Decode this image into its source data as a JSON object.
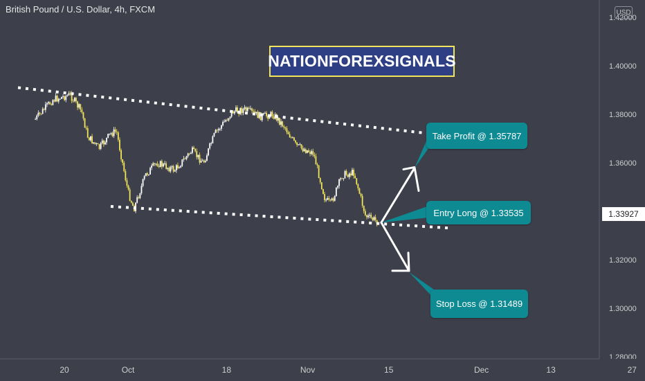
{
  "symbol_title": "British Pound / U.S. Dollar, 4h, FXCM",
  "watermark": "NATIONFOREXSIGNALS",
  "currency_badge": "USD",
  "last_price": "1.33927",
  "callouts": {
    "take_profit": "Take Profit @ 1.35787",
    "entry": "Entry Long @ 1.33535",
    "stop_loss": "Stop Loss @ 1.31489"
  },
  "colors": {
    "background": "#3d3f4b",
    "candle": "#f2e45a",
    "callout": "#0e8a93",
    "trendline": "#ffffff",
    "brand_box": "#2f3f84",
    "brand_border": "#f2e45a"
  },
  "chart_data": {
    "type": "candlestick",
    "y_tick_labels": [
      "1.28000",
      "1.30000",
      "1.32000",
      "1.34000",
      "1.36000",
      "1.38000",
      "1.40000",
      "1.42000"
    ],
    "x_tick_labels": [
      "20",
      "Oct",
      "18",
      "Nov",
      "15",
      "Dec",
      "13",
      "27"
    ],
    "ylim": [
      1.278,
      1.422
    ],
    "grid": false,
    "price_path": [
      {
        "x": "Sep 15",
        "y": 1.378
      },
      {
        "x": "Sep 18",
        "y": 1.386
      },
      {
        "x": "Sep 21",
        "y": 1.388
      },
      {
        "x": "Sep 23",
        "y": 1.381
      },
      {
        "x": "Sep 24",
        "y": 1.371
      },
      {
        "x": "Sep 26",
        "y": 1.366
      },
      {
        "x": "Sep 28",
        "y": 1.372
      },
      {
        "x": "Sep 29",
        "y": 1.373
      },
      {
        "x": "Oct 1",
        "y": 1.348
      },
      {
        "x": "Oct 2",
        "y": 1.341
      },
      {
        "x": "Oct 4",
        "y": 1.355
      },
      {
        "x": "Oct 6",
        "y": 1.36
      },
      {
        "x": "Oct 9",
        "y": 1.357
      },
      {
        "x": "Oct 12",
        "y": 1.365
      },
      {
        "x": "Oct 14",
        "y": 1.36
      },
      {
        "x": "Oct 16",
        "y": 1.372
      },
      {
        "x": "Oct 19",
        "y": 1.381
      },
      {
        "x": "Oct 21",
        "y": 1.382
      },
      {
        "x": "Oct 24",
        "y": 1.379
      },
      {
        "x": "Oct 26",
        "y": 1.38
      },
      {
        "x": "Oct 28",
        "y": 1.375
      },
      {
        "x": "Oct 30",
        "y": 1.367
      },
      {
        "x": "Nov 2",
        "y": 1.364
      },
      {
        "x": "Nov 4",
        "y": 1.345
      },
      {
        "x": "Nov 5",
        "y": 1.343
      },
      {
        "x": "Nov 7",
        "y": 1.355
      },
      {
        "x": "Nov 9",
        "y": 1.356
      },
      {
        "x": "Nov 11",
        "y": 1.338
      },
      {
        "x": "Nov 13",
        "y": 1.336
      }
    ],
    "trendlines": [
      {
        "name": "resistance",
        "from": {
          "x": "Sep 12",
          "y": 1.391
        },
        "to": {
          "x": "Nov 26",
          "y": 1.371
        }
      },
      {
        "name": "support",
        "from": {
          "x": "Sep 28",
          "y": 1.342
        },
        "to": {
          "x": "Nov 26",
          "y": 1.333
        }
      }
    ],
    "levels": {
      "take_profit": 1.35787,
      "entry": 1.33535,
      "stop_loss": 1.31489
    }
  }
}
